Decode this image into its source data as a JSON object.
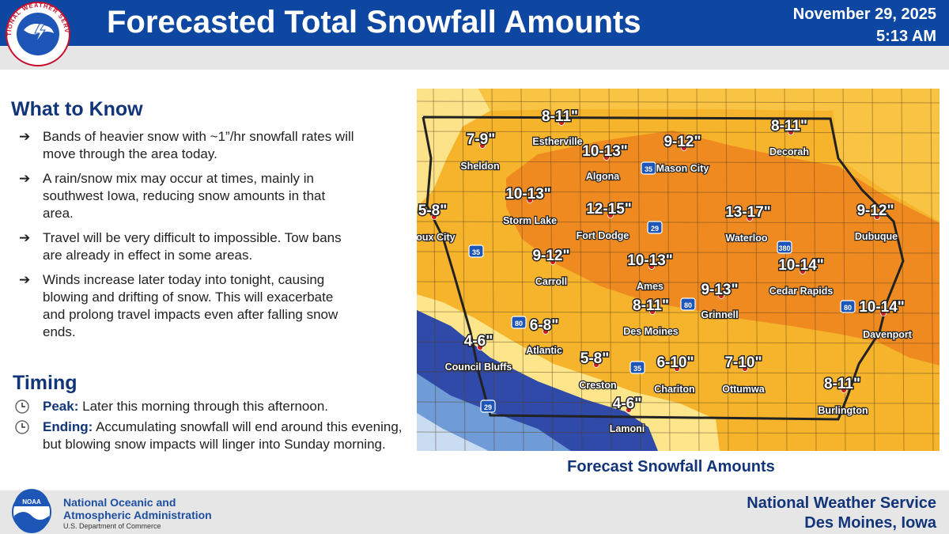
{
  "header": {
    "title": "Forecasted Total Snowfall Amounts",
    "date": "November 29, 2025",
    "time": "5:13 AM",
    "logo_text": "NATIONAL WEATHER SERVICE"
  },
  "what_to_know": {
    "heading": "What to Know",
    "bullets": [
      "Bands of heavier snow with ~1”/hr snowfall rates will move through the area today.",
      "A rain/snow mix may occur at times, mainly in southwest Iowa, reducing snow amounts in that area.",
      "Travel will be very difficult to impossible. Tow bans are already in effect in some areas.",
      "Winds increase later today into tonight, causing blowing and drifting of snow. This will exacerbate and prolong travel impacts even after falling snow ends."
    ]
  },
  "timing": {
    "heading": "Timing",
    "items": [
      {
        "label": "Peak:",
        "text": "Later this morning through this afternoon."
      },
      {
        "label": "Ending:",
        "text": "Accumulating snowfall will end around this evening, but blowing snow impacts will linger into Sunday morning."
      }
    ]
  },
  "map": {
    "caption": "Forecast Snowfall Amounts",
    "cities": [
      {
        "name": "Estherville",
        "amount": "8-11\""
      },
      {
        "name": "Sheldon",
        "amount": "7-9\""
      },
      {
        "name": "Algona",
        "amount": "10-13\""
      },
      {
        "name": "Mason City",
        "amount": "9-12\""
      },
      {
        "name": "Decorah",
        "amount": "8-11\""
      },
      {
        "name": "Storm Lake",
        "amount": "10-13\""
      },
      {
        "name": "Fort Dodge",
        "amount": "12-15\""
      },
      {
        "name": "Waterloo",
        "amount": "13-17\""
      },
      {
        "name": "Dubuque",
        "amount": "9-12\""
      },
      {
        "name": "Sioux City",
        "amount": "5-8\""
      },
      {
        "name": "Carroll",
        "amount": "9-12\""
      },
      {
        "name": "Ames",
        "amount": "10-13\""
      },
      {
        "name": "Cedar Rapids",
        "amount": "10-14\""
      },
      {
        "name": "Grinnell",
        "amount": "9-13\""
      },
      {
        "name": "Des Moines",
        "amount": "8-11\""
      },
      {
        "name": "Atlantic",
        "amount": "6-8\""
      },
      {
        "name": "Davenport",
        "amount": "10-14\""
      },
      {
        "name": "Council Bluffs",
        "amount": "4-6\""
      },
      {
        "name": "Creston",
        "amount": "5-8\""
      },
      {
        "name": "Chariton",
        "amount": "6-10\""
      },
      {
        "name": "Ottumwa",
        "amount": "7-10\""
      },
      {
        "name": "Burlington",
        "amount": "8-11\""
      },
      {
        "name": "Lamoni",
        "amount": "4-6\""
      }
    ],
    "highways": [
      "35",
      "35",
      "29",
      "80",
      "80",
      "35",
      "29",
      "380",
      "80"
    ]
  },
  "footer": {
    "noaa_logo": "NOAA",
    "agency_line1": "National Oceanic and",
    "agency_line2": "Atmospheric Administration",
    "department": "U.S. Department of Commerce",
    "office_line1": "National Weather Service",
    "office_line2": "Des Moines, Iowa"
  }
}
